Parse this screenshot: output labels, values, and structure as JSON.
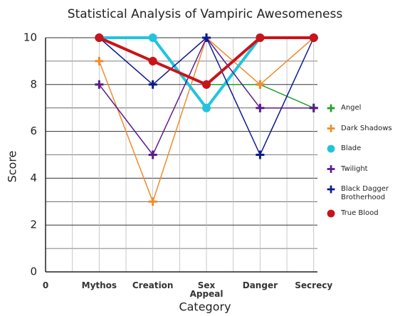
{
  "chart_data": {
    "type": "line",
    "title": "Statistical Analysis of Vampiric Awesomeness",
    "x_label": "Category",
    "y_label": "Score",
    "x": [
      1,
      2,
      3,
      4,
      5
    ],
    "xlim": [
      0,
      5.07
    ],
    "xticks": [
      {
        "value": 0,
        "label": "0"
      },
      {
        "value": 1,
        "label": "Mythos"
      },
      {
        "value": 2,
        "label": "Creation"
      },
      {
        "value": 3,
        "label": "Sex Appeal"
      },
      {
        "value": 4,
        "label": "Danger"
      },
      {
        "value": 5,
        "label": "Secrecy"
      }
    ],
    "ylim": [
      0,
      10
    ],
    "yticks": [
      0,
      2,
      4,
      6,
      8,
      10
    ],
    "grid": true,
    "legend": "right",
    "series": [
      {
        "name": "Angel",
        "color": "#22a02a",
        "marker": "plus",
        "width": 1.5,
        "values": [
          10,
          9,
          8,
          8,
          7
        ]
      },
      {
        "name": "Dark Shadows",
        "color": "#f08c2a",
        "marker": "plus",
        "width": 1.5,
        "values": [
          9,
          3,
          10,
          8,
          10
        ]
      },
      {
        "name": "Blade",
        "color": "#22c4dc",
        "marker": "circle",
        "width": 4,
        "values": [
          10,
          10,
          7,
          10,
          10
        ]
      },
      {
        "name": "Twilight",
        "color": "#5a1a8c",
        "marker": "plus",
        "width": 1.5,
        "values": [
          8,
          5,
          10,
          7,
          7
        ]
      },
      {
        "name": "Black Dagger Brotherhood",
        "color": "#0a1a8c",
        "marker": "plus",
        "width": 1.5,
        "values": [
          10,
          8,
          10,
          5,
          10
        ]
      },
      {
        "name": "True Blood",
        "color": "#c8141a",
        "marker": "circle",
        "width": 4,
        "values": [
          10,
          9,
          8,
          10,
          10
        ]
      }
    ]
  }
}
